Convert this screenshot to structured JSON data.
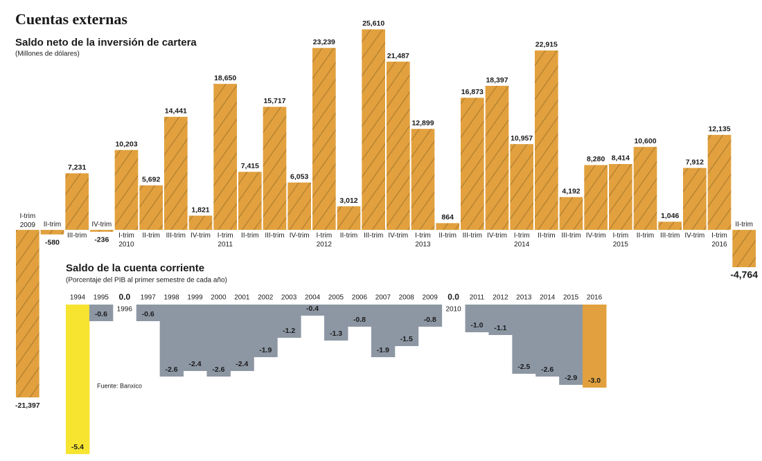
{
  "header": {
    "title": "Cuentas externas"
  },
  "chart_data": [
    {
      "type": "bar",
      "title": "Saldo neto de la inversión de cartera",
      "subtitle": "(Millones de dólares)",
      "categories": [
        "I-trim",
        "II-trim",
        "III-trim",
        "IV-trim",
        "I-trim",
        "II-trim",
        "III-trim",
        "IV-trim",
        "I-trim",
        "II-trim",
        "III-trim",
        "IV-trim",
        "I-trim",
        "II-trim",
        "III-trim",
        "IV-trim",
        "I-trim",
        "II-trim",
        "III-trim",
        "IV-trim",
        "I-trim",
        "II-trim",
        "III-trim",
        "IV-trim",
        "I-trim",
        "II-trim",
        "III-trim",
        "IV-trim",
        "I-trim",
        "II-trim"
      ],
      "category_years": [
        "2009",
        null,
        null,
        null,
        "2010",
        null,
        null,
        null,
        "2011",
        null,
        null,
        null,
        "2012",
        null,
        null,
        null,
        "2013",
        null,
        null,
        null,
        "2014",
        null,
        null,
        null,
        "2015",
        null,
        null,
        null,
        "2016",
        null
      ],
      "values": [
        -21397,
        -580,
        7231,
        -236,
        10203,
        5692,
        14441,
        1821,
        18650,
        7415,
        15717,
        6053,
        23239,
        3012,
        25610,
        21487,
        12899,
        864,
        16873,
        18397,
        10957,
        22915,
        4192,
        8280,
        8414,
        10600,
        1046,
        7912,
        12135,
        -4764
      ],
      "value_labels": [
        "-21,397",
        "-580",
        "7,231",
        "-236",
        "10,203",
        "5,692",
        "14,441",
        "1,821",
        "18,650",
        "7,415",
        "15,717",
        "6,053",
        "23,239",
        "3,012",
        "25,610",
        "21,487",
        "12,899",
        "864",
        "16,873",
        "18,397",
        "10,957",
        "22,915",
        "4,192",
        "8,280",
        "8,414",
        "10,600",
        "1,046",
        "7,912",
        "12,135",
        "-4,764"
      ],
      "color": "#e2a13e",
      "ylim": [
        -22000,
        26000
      ]
    },
    {
      "type": "bar",
      "title": "Saldo de la cuenta corriente",
      "subtitle": "(Porcentaje del PIB al primer semestre de cada año)",
      "categories": [
        "1994",
        "1995",
        "1996",
        "1997",
        "1998",
        "1999",
        "2000",
        "2001",
        "2002",
        "2003",
        "2004",
        "2005",
        "2006",
        "2007",
        "2008",
        "2009",
        "2010",
        "2011",
        "2012",
        "2013",
        "2014",
        "2015",
        "2016"
      ],
      "values": [
        -5.4,
        -0.6,
        0,
        -0.6,
        -2.6,
        -2.4,
        -2.6,
        -2.4,
        -1.9,
        -1.2,
        -0.4,
        -1.3,
        -0.8,
        -1.9,
        -1.5,
        -0.8,
        0,
        -1.0,
        -1.1,
        -2.5,
        -2.6,
        -2.9,
        -3.0
      ],
      "value_labels": [
        "-5.4",
        "-0.6",
        "0.0",
        "-0.6",
        "-2.6",
        "-2.4",
        "-2.6",
        "-2.4",
        "-1.9",
        "-1.2",
        "-0.4",
        "-1.3",
        "-0.8",
        "-1.9",
        "-1.5",
        "-0.8",
        "0.0",
        "-1.0",
        "-1.1",
        "-2.5",
        "-2.6",
        "-2.9",
        "-3.0"
      ],
      "colors": [
        "#f7e431",
        "#8d97a4",
        "#8d97a4",
        "#8d97a4",
        "#8d97a4",
        "#8d97a4",
        "#8d97a4",
        "#8d97a4",
        "#8d97a4",
        "#8d97a4",
        "#8d97a4",
        "#8d97a4",
        "#8d97a4",
        "#8d97a4",
        "#8d97a4",
        "#8d97a4",
        "#8d97a4",
        "#8d97a4",
        "#8d97a4",
        "#8d97a4",
        "#8d97a4",
        "#8d97a4",
        "#e2a13e"
      ],
      "ylim": [
        -5.5,
        0
      ],
      "source": "Fuente: Banxico"
    }
  ]
}
